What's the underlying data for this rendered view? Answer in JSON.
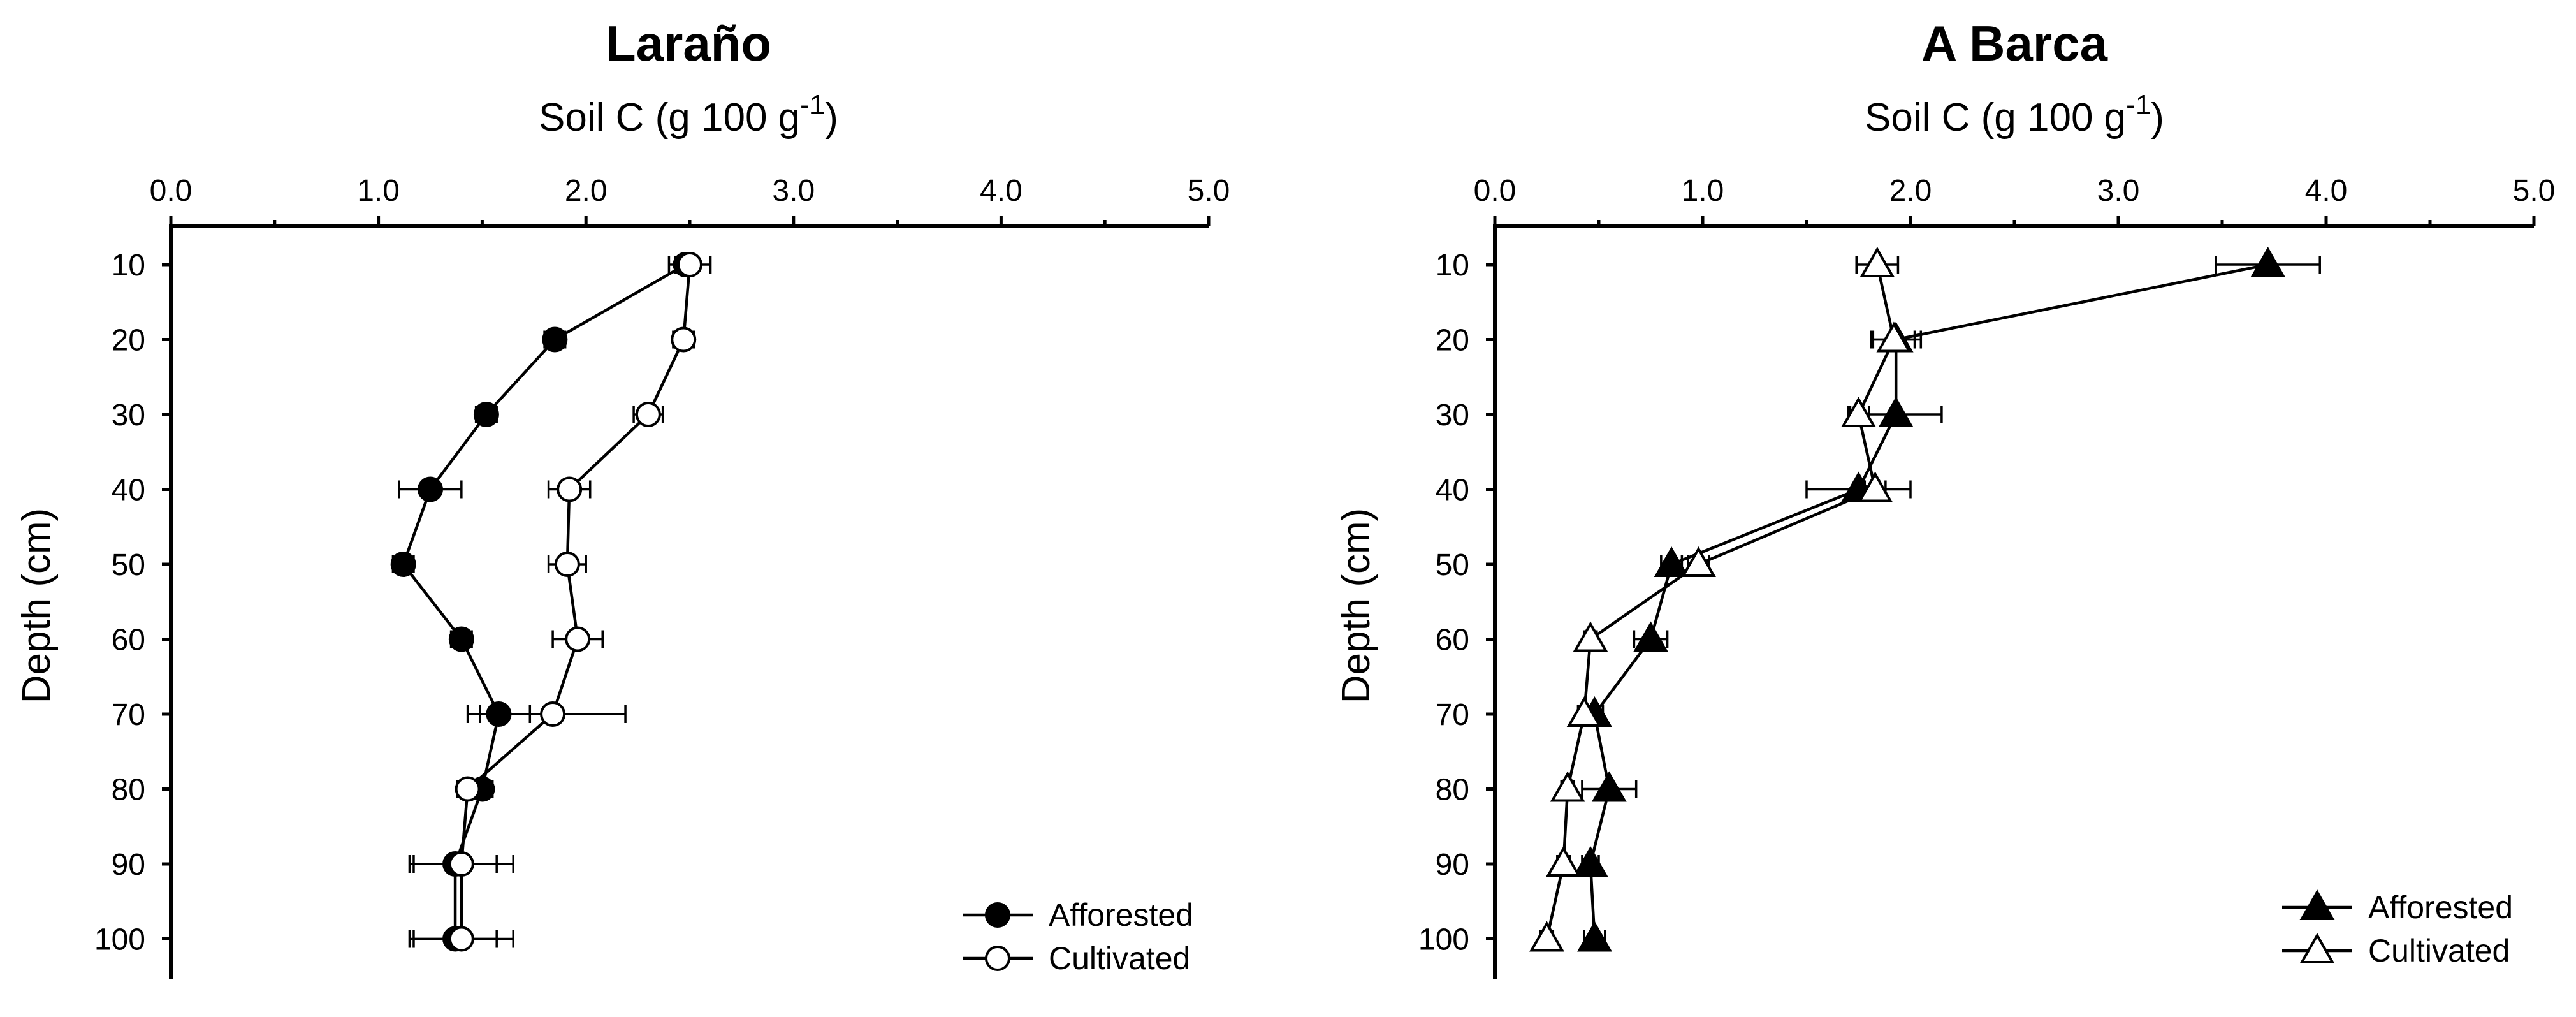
{
  "chart_data": [
    {
      "type": "line",
      "title": "Laraño",
      "xlabel": "Soil C (g 100 g",
      "xlabel_sup": "-1",
      "xlabel_end": ")",
      "ylabel": "Depth (cm)",
      "xlim": [
        0,
        5
      ],
      "xticks": [
        "0.0",
        "1.0",
        "2.0",
        "3.0",
        "4.0",
        "5.0"
      ],
      "yticks": [
        "10",
        "20",
        "30",
        "40",
        "50",
        "60",
        "70",
        "80",
        "90",
        "100"
      ],
      "depths": [
        10,
        20,
        30,
        40,
        50,
        60,
        70,
        80,
        90,
        100
      ],
      "legend_position": "bottom-right",
      "series": [
        {
          "name": "Afforested",
          "marker": "circle",
          "fill": "#000000",
          "values": [
            2.48,
            1.85,
            1.52,
            1.25,
            1.12,
            1.4,
            1.58,
            1.5,
            1.37,
            1.37
          ],
          "errors": [
            0.05,
            0.05,
            0.05,
            0.15,
            0.05,
            0.05,
            0.15,
            0.05,
            0.2,
            0.2
          ]
        },
        {
          "name": "Cultivated",
          "marker": "circle",
          "fill": "#ffffff",
          "values": [
            2.5,
            2.47,
            2.3,
            1.92,
            1.91,
            1.96,
            1.84,
            1.43,
            1.4,
            1.4
          ],
          "errors": [
            0.1,
            0.05,
            0.07,
            0.1,
            0.09,
            0.12,
            0.35,
            0.05,
            0.25,
            0.25
          ]
        }
      ]
    },
    {
      "type": "line",
      "title": "A Barca",
      "xlabel": "Soil C (g 100 g",
      "xlabel_sup": "-1",
      "xlabel_end": ")",
      "ylabel": "Depth (cm)",
      "xlim": [
        0,
        5
      ],
      "xticks": [
        "0.0",
        "1.0",
        "2.0",
        "3.0",
        "4.0",
        "5.0"
      ],
      "yticks": [
        "10",
        "20",
        "30",
        "40",
        "50",
        "60",
        "70",
        "80",
        "90",
        "100"
      ],
      "depths": [
        10,
        20,
        30,
        40,
        50,
        60,
        70,
        80,
        90,
        100
      ],
      "legend_position": "bottom-right",
      "series": [
        {
          "name": "Afforested",
          "marker": "triangle",
          "fill": "#000000",
          "values": [
            3.72,
            1.93,
            1.93,
            1.75,
            0.85,
            0.75,
            0.48,
            0.55,
            0.46,
            0.48
          ],
          "errors": [
            0.25,
            0.12,
            0.22,
            0.25,
            0.05,
            0.08,
            0.04,
            0.13,
            0.04,
            0.05
          ]
        },
        {
          "name": "Cultivated",
          "marker": "triangle",
          "fill": "#ffffff",
          "values": [
            1.84,
            1.92,
            1.75,
            1.83,
            0.98,
            0.46,
            0.43,
            0.35,
            0.33,
            0.25
          ],
          "errors": [
            0.1,
            0.1,
            0.05,
            0.05,
            0.05,
            0.03,
            0.03,
            0.03,
            0.03,
            0.03
          ]
        }
      ]
    }
  ]
}
